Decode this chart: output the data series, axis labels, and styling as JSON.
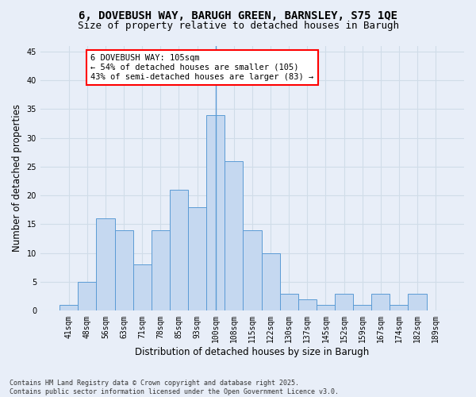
{
  "title_line1": "6, DOVEBUSH WAY, BARUGH GREEN, BARNSLEY, S75 1QE",
  "title_line2": "Size of property relative to detached houses in Barugh",
  "xlabel": "Distribution of detached houses by size in Barugh",
  "ylabel": "Number of detached properties",
  "categories": [
    "41sqm",
    "48sqm",
    "56sqm",
    "63sqm",
    "71sqm",
    "78sqm",
    "85sqm",
    "93sqm",
    "100sqm",
    "108sqm",
    "115sqm",
    "122sqm",
    "130sqm",
    "137sqm",
    "145sqm",
    "152sqm",
    "159sqm",
    "167sqm",
    "174sqm",
    "182sqm",
    "189sqm"
  ],
  "values": [
    1,
    5,
    16,
    14,
    8,
    14,
    21,
    18,
    34,
    26,
    14,
    10,
    3,
    2,
    1,
    3,
    1,
    3,
    1,
    3,
    0
  ],
  "bar_color": "#c5d8f0",
  "bar_edge_color": "#5b9bd5",
  "annotation_line1": "6 DOVEBUSH WAY: 105sqm",
  "annotation_line2": "← 54% of detached houses are smaller (105)",
  "annotation_line3": "43% of semi-detached houses are larger (83) →",
  "annotation_box_color": "white",
  "annotation_box_edge_color": "red",
  "vline_bar_index": 8,
  "ylim": [
    0,
    46
  ],
  "yticks": [
    0,
    5,
    10,
    15,
    20,
    25,
    30,
    35,
    40,
    45
  ],
  "grid_color": "#d0dce8",
  "background_color": "#e8eef8",
  "footer_text": "Contains HM Land Registry data © Crown copyright and database right 2025.\nContains public sector information licensed under the Open Government Licence v3.0.",
  "title_fontsize": 10,
  "subtitle_fontsize": 9,
  "axis_label_fontsize": 8.5,
  "tick_fontsize": 7,
  "annotation_fontsize": 7.5,
  "footer_fontsize": 6
}
